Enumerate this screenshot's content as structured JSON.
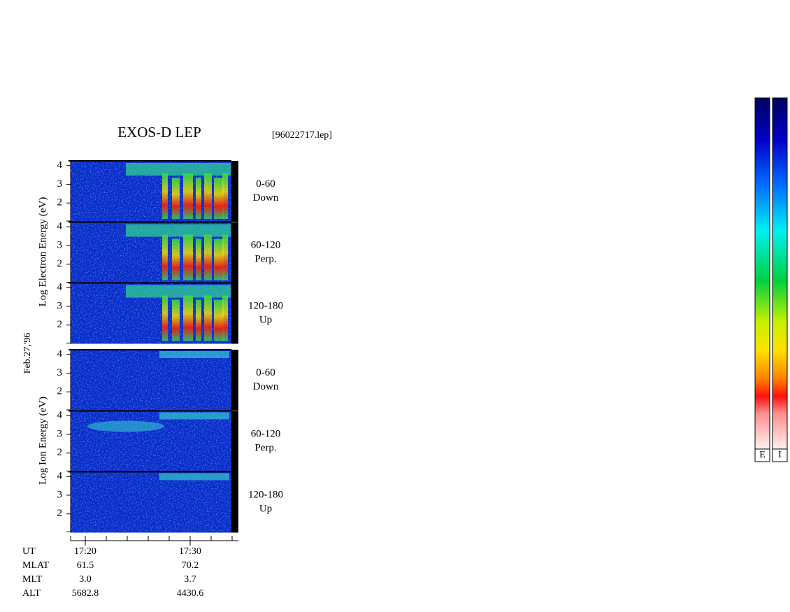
{
  "title": "EXOS-D LEP",
  "file": "[96022717.lep]",
  "date": "Feb.27,'96",
  "electron": {
    "label": "Log  Electron  Energy  (eV)",
    "panels": [
      {
        "range": "0-60",
        "direction": "Down"
      },
      {
        "range": "60-120",
        "direction": "Perp."
      },
      {
        "range": "120-180",
        "direction": "Up"
      }
    ]
  },
  "ion": {
    "label": "Log  Ion  Energy  (eV)",
    "panels": [
      {
        "range": "0-60",
        "direction": "Down"
      },
      {
        "range": "60-120",
        "direction": "Perp."
      },
      {
        "range": "120-180",
        "direction": "Up"
      }
    ]
  },
  "ylim": [
    1,
    4.25
  ],
  "yticks": [
    4,
    3,
    2
  ],
  "info": {
    "rows": [
      [
        "UT",
        "17:20",
        "17:30"
      ],
      [
        "MLAT",
        "61.5",
        "70.2"
      ],
      [
        "MLT",
        "3.0",
        "3.7"
      ],
      [
        "ALT",
        "5682.8",
        "4430.6"
      ]
    ]
  },
  "colorbars": [
    "E",
    "I"
  ]
}
